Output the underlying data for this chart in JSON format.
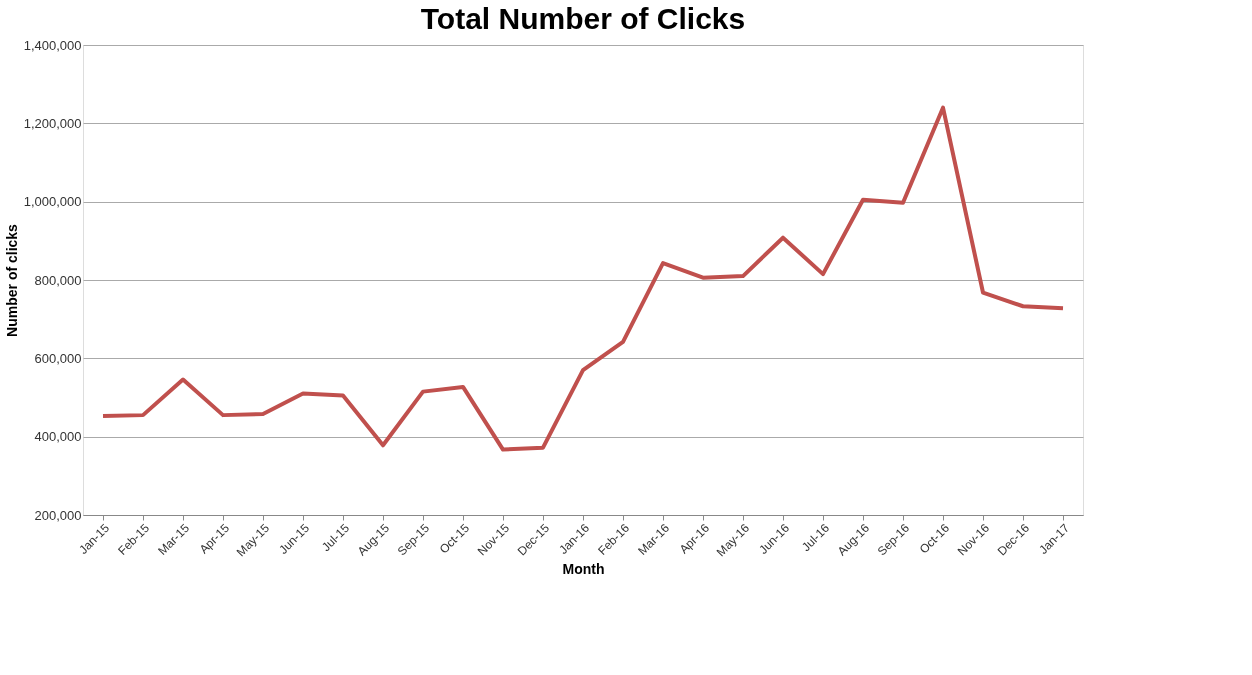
{
  "chart_data": {
    "type": "line",
    "title": "Total Number of Clicks",
    "xlabel": "Month",
    "ylabel": "Number of clicks",
    "categories": [
      "Jan-15",
      "Feb-15",
      "Mar-15",
      "Apr-15",
      "May-15",
      "Jun-15",
      "Jul-15",
      "Aug-15",
      "Sep-15",
      "Oct-15",
      "Nov-15",
      "Dec-15",
      "Jan-16",
      "Feb-16",
      "Mar-16",
      "Apr-16",
      "May-16",
      "Jun-16",
      "Jul-16",
      "Aug-16",
      "Sep-16",
      "Oct-16",
      "Nov-16",
      "Dec-16",
      "Jan-17"
    ],
    "series": [
      {
        "color": "#c0504d",
        "values": [
          453000,
          455000,
          546000,
          455000,
          458000,
          510000,
          505000,
          378000,
          515000,
          527000,
          367000,
          372000,
          570000,
          642000,
          843000,
          806000,
          810000,
          908000,
          815000,
          1005000,
          997000,
          1240000,
          768000,
          733000,
          728000
        ]
      }
    ],
    "ylim": [
      200000,
      1400000
    ],
    "yticks": [
      {
        "value": 200000,
        "label": "200,000"
      },
      {
        "value": 400000,
        "label": "400,000"
      },
      {
        "value": 600000,
        "label": "600,000"
      },
      {
        "value": 800000,
        "label": "800,000"
      },
      {
        "value": 1000000,
        "label": "1,000,000"
      },
      {
        "value": 1200000,
        "label": "1,200,000"
      },
      {
        "value": 1400000,
        "label": "1,400,000"
      }
    ],
    "grid": "y",
    "marker": "none",
    "line_style": "solid"
  }
}
